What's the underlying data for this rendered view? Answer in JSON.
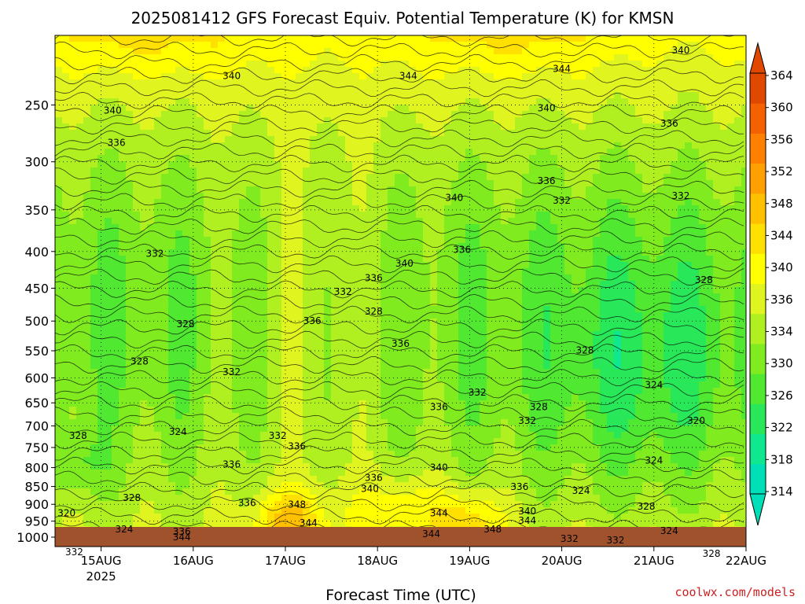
{
  "chart_data": {
    "type": "heatmap",
    "title": "2025081412 GFS Forecast Equiv. Potential Temperature (K) for KMSN",
    "xlabel": "Forecast Time (UTC)",
    "ylabel": "",
    "credit": "coolwx.com/models",
    "x_ticks": [
      {
        "label": "15AUG",
        "sublabel": "2025",
        "time": "2025-08-15T00"
      },
      {
        "label": "16AUG",
        "sublabel": "",
        "time": "2025-08-16T00"
      },
      {
        "label": "17AUG",
        "sublabel": "",
        "time": "2025-08-17T00"
      },
      {
        "label": "18AUG",
        "sublabel": "",
        "time": "2025-08-18T00"
      },
      {
        "label": "19AUG",
        "sublabel": "",
        "time": "2025-08-19T00"
      },
      {
        "label": "20AUG",
        "sublabel": "",
        "time": "2025-08-20T00"
      },
      {
        "label": "21AUG",
        "sublabel": "",
        "time": "2025-08-21T00"
      },
      {
        "label": "22AUG",
        "sublabel": "",
        "time": "2025-08-22T00"
      }
    ],
    "x_range": [
      "2025-08-14T12",
      "2025-08-22T00"
    ],
    "y_ticks": [
      "250",
      "300",
      "350",
      "400",
      "450",
      "500",
      "550",
      "600",
      "650",
      "700",
      "750",
      "800",
      "850",
      "900",
      "950",
      "1000"
    ],
    "y_range": [
      200,
      1000
    ],
    "y_scale": "log",
    "grid": true,
    "colorbar": {
      "min": 314,
      "max": 366,
      "labels": [
        "364",
        "360",
        "356",
        "352",
        "348",
        "344",
        "340",
        "336",
        "334",
        "330",
        "326",
        "322",
        "318",
        "314"
      ],
      "colors": [
        "#00e0b8",
        "#10e890",
        "#28e85a",
        "#50e830",
        "#80ec20",
        "#b0f020",
        "#e0f520",
        "#ffff00",
        "#ffe000",
        "#ffc000",
        "#ffa000",
        "#ff8000",
        "#f56000",
        "#e04800"
      ]
    },
    "contour_labels": [
      {
        "text": "340",
        "time": "2025-08-21T07",
        "p": 212
      },
      {
        "text": "344",
        "time": "2025-08-20T00",
        "p": 225
      },
      {
        "text": "344",
        "time": "2025-08-18T08",
        "p": 230
      },
      {
        "text": "340",
        "time": "2025-08-16T10",
        "p": 230
      },
      {
        "text": "340",
        "time": "2025-08-15T03",
        "p": 257
      },
      {
        "text": "340",
        "time": "2025-08-19T20",
        "p": 255
      },
      {
        "text": "336",
        "time": "2025-08-21T04",
        "p": 268
      },
      {
        "text": "336",
        "time": "2025-08-15T04",
        "p": 285
      },
      {
        "text": "336",
        "time": "2025-08-19T20",
        "p": 322
      },
      {
        "text": "332",
        "time": "2025-08-20T00",
        "p": 343
      },
      {
        "text": "332",
        "time": "2025-08-21T07",
        "p": 338
      },
      {
        "text": "340",
        "time": "2025-08-18T20",
        "p": 340
      },
      {
        "text": "336",
        "time": "2025-08-18T22",
        "p": 402
      },
      {
        "text": "340",
        "time": "2025-08-18T07",
        "p": 420
      },
      {
        "text": "332",
        "time": "2025-08-15T14",
        "p": 407
      },
      {
        "text": "336",
        "time": "2025-08-17T23",
        "p": 440
      },
      {
        "text": "332",
        "time": "2025-08-17T15",
        "p": 460
      },
      {
        "text": "328",
        "time": "2025-08-21T13",
        "p": 443
      },
      {
        "text": "328",
        "time": "2025-08-17T23",
        "p": 490
      },
      {
        "text": "336",
        "time": "2025-08-17T07",
        "p": 505
      },
      {
        "text": "328",
        "time": "2025-08-15T22",
        "p": 510
      },
      {
        "text": "336",
        "time": "2025-08-18T06",
        "p": 543
      },
      {
        "text": "328",
        "time": "2025-08-20T06",
        "p": 555
      },
      {
        "text": "328",
        "time": "2025-08-15T10",
        "p": 575
      },
      {
        "text": "332",
        "time": "2025-08-16T10",
        "p": 595
      },
      {
        "text": "324",
        "time": "2025-08-21T00",
        "p": 620
      },
      {
        "text": "332",
        "time": "2025-08-19T02",
        "p": 635
      },
      {
        "text": "336",
        "time": "2025-08-18T16",
        "p": 665
      },
      {
        "text": "328",
        "time": "2025-08-19T18",
        "p": 665
      },
      {
        "text": "332",
        "time": "2025-08-19T15",
        "p": 695
      },
      {
        "text": "320",
        "time": "2025-08-21T11",
        "p": 695
      },
      {
        "text": "324",
        "time": "2025-08-15T20",
        "p": 720
      },
      {
        "text": "328",
        "time": "2025-08-14T18",
        "p": 730
      },
      {
        "text": "332",
        "time": "2025-08-16T22",
        "p": 730
      },
      {
        "text": "336",
        "time": "2025-08-17T03",
        "p": 755
      },
      {
        "text": "324",
        "time": "2025-08-21T00",
        "p": 790
      },
      {
        "text": "336",
        "time": "2025-08-16T10",
        "p": 800
      },
      {
        "text": "340",
        "time": "2025-08-18T16",
        "p": 808
      },
      {
        "text": "336",
        "time": "2025-08-17T23",
        "p": 835
      },
      {
        "text": "340",
        "time": "2025-08-17T22",
        "p": 865
      },
      {
        "text": "324",
        "time": "2025-08-20T05",
        "p": 870
      },
      {
        "text": "336",
        "time": "2025-08-19T13",
        "p": 860
      },
      {
        "text": "328",
        "time": "2025-08-15T08",
        "p": 890
      },
      {
        "text": "336",
        "time": "2025-08-16T14",
        "p": 905
      },
      {
        "text": "348",
        "time": "2025-08-17T03",
        "p": 910
      },
      {
        "text": "340",
        "time": "2025-08-19T15",
        "p": 930
      },
      {
        "text": "328",
        "time": "2025-08-20T22",
        "p": 915
      },
      {
        "text": "320",
        "time": "2025-08-14T15",
        "p": 935
      },
      {
        "text": "344",
        "time": "2025-08-18T16",
        "p": 935
      },
      {
        "text": "344",
        "time": "2025-08-19T15",
        "p": 958
      },
      {
        "text": "344",
        "time": "2025-08-17T06",
        "p": 965
      },
      {
        "text": "324",
        "time": "2025-08-15T06",
        "p": 985
      },
      {
        "text": "336",
        "time": "2025-08-15T21",
        "p": 992
      },
      {
        "text": "348",
        "time": "2025-08-19T06",
        "p": 985
      },
      {
        "text": "344",
        "time": "2025-08-15T21",
        "p": 1010
      },
      {
        "text": "344",
        "time": "2025-08-18T14",
        "p": 1000
      },
      {
        "text": "324",
        "time": "2025-08-21T04",
        "p": 990
      },
      {
        "text": "332",
        "time": "2025-08-20T02",
        "p": 1015
      },
      {
        "text": "332",
        "time": "2025-08-20T14",
        "p": 1020
      },
      {
        "text": "332",
        "time": "2025-08-14T17",
        "p": 1060
      },
      {
        "text": "328",
        "time": "2025-08-21T15",
        "p": 1065
      }
    ]
  }
}
